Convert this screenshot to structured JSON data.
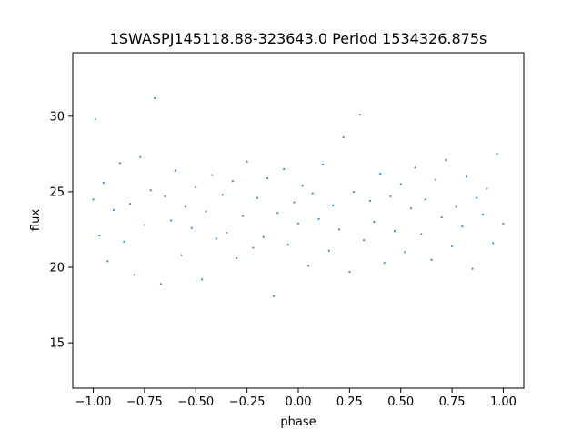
{
  "chart_data": {
    "type": "scatter",
    "title": "1SWASPJ145118.88-323643.0 Period 1534326.875s",
    "xlabel": "phase",
    "ylabel": "flux",
    "xlim": [
      -1.1,
      1.1
    ],
    "ylim": [
      12.0,
      34.2
    ],
    "xticks": [
      -1.0,
      -0.75,
      -0.5,
      -0.25,
      0.0,
      0.25,
      0.5,
      0.75,
      1.0
    ],
    "xtick_labels": [
      "−1.00",
      "−0.75",
      "−0.50",
      "−0.25",
      "0.00",
      "0.25",
      "0.50",
      "0.75",
      "1.00"
    ],
    "yticks": [
      15,
      20,
      25,
      30
    ],
    "ytick_labels": [
      "15",
      "20",
      "25",
      "30"
    ],
    "grid": false,
    "marker_color": "#1f77b4",
    "series": [
      {
        "x": [
          -1.0,
          -0.99,
          -0.97,
          -0.95,
          -0.93,
          -0.9,
          -0.87,
          -0.85,
          -0.82,
          -0.8,
          -0.77,
          -0.75,
          -0.72,
          -0.7,
          -0.67,
          -0.65,
          -0.62,
          -0.6,
          -0.57,
          -0.55,
          -0.52,
          -0.5,
          -0.47,
          -0.45,
          -0.42,
          -0.4,
          -0.37,
          -0.35,
          -0.32,
          -0.3,
          -0.27,
          -0.25,
          -0.22,
          -0.2,
          -0.17,
          -0.15,
          -0.12,
          -0.1,
          -0.07,
          -0.05,
          -0.02,
          0.0,
          0.02,
          0.05,
          0.07,
          0.1,
          0.12,
          0.15,
          0.17,
          0.2,
          0.22,
          0.25,
          0.27,
          0.3,
          0.32,
          0.35,
          0.37,
          0.4,
          0.42,
          0.45,
          0.47,
          0.5,
          0.52,
          0.55,
          0.57,
          0.6,
          0.62,
          0.65,
          0.67,
          0.7,
          0.72,
          0.75,
          0.77,
          0.8,
          0.82,
          0.85,
          0.87,
          0.9,
          0.92,
          0.95,
          0.97,
          1.0
        ],
        "y": [
          24.5,
          29.8,
          22.1,
          25.6,
          20.4,
          23.8,
          26.9,
          21.7,
          24.2,
          19.5,
          27.3,
          22.8,
          25.1,
          31.2,
          18.9,
          24.7,
          23.1,
          26.4,
          20.8,
          24.0,
          22.6,
          25.3,
          19.2,
          23.7,
          26.1,
          21.9,
          24.8,
          22.3,
          25.7,
          20.6,
          23.4,
          27.0,
          21.3,
          24.6,
          22.0,
          25.9,
          18.1,
          23.6,
          26.5,
          21.5,
          24.3,
          22.9,
          25.4,
          20.1,
          24.9,
          23.2,
          26.8,
          21.1,
          24.1,
          22.5,
          28.6,
          19.7,
          25.0,
          30.1,
          21.8,
          24.4,
          23.0,
          26.2,
          20.3,
          24.7,
          22.4,
          25.5,
          21.0,
          23.9,
          26.6,
          22.2,
          24.5,
          20.5,
          25.8,
          23.3,
          27.1,
          21.4,
          24.0,
          22.7,
          26.0,
          19.9,
          24.6,
          23.5,
          25.2,
          21.6,
          27.5,
          22.9
        ]
      }
    ]
  }
}
